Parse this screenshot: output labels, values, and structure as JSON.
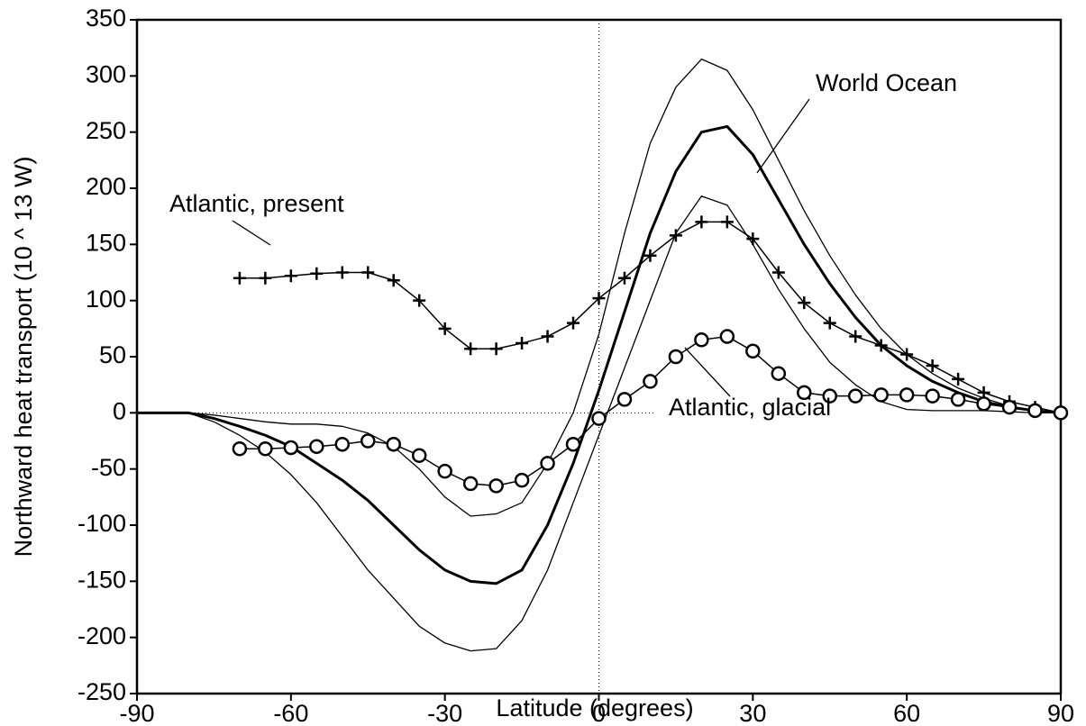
{
  "chart_data": {
    "type": "line",
    "xlabel": "Latitude (degrees)",
    "ylabel": "Northward heat transport (10 ^ 13 W)",
    "annotations": [
      "World Ocean",
      "Atlantic, present",
      "Atlantic, glacial"
    ],
    "x": [
      -90,
      -85,
      -80,
      -75,
      -70,
      -65,
      -60,
      -55,
      -50,
      -45,
      -40,
      -35,
      -30,
      -25,
      -20,
      -15,
      -10,
      -5,
      0,
      5,
      10,
      15,
      20,
      25,
      30,
      35,
      40,
      45,
      50,
      55,
      60,
      65,
      70,
      75,
      80,
      85,
      90
    ],
    "series": [
      {
        "name": "World Ocean",
        "color": "#000000",
        "line_width": 3,
        "marker": "none",
        "values": [
          0,
          0,
          0,
          -5,
          -12,
          -20,
          -30,
          -45,
          -60,
          -78,
          -100,
          -122,
          -140,
          -150,
          -152,
          -140,
          -100,
          -45,
          20,
          90,
          160,
          215,
          250,
          255,
          230,
          190,
          150,
          115,
          85,
          60,
          42,
          28,
          18,
          10,
          5,
          2,
          0
        ]
      },
      {
        "color": "#000000",
        "line_width": 1.3,
        "marker": "none",
        "values": [
          0,
          0,
          0,
          -2,
          -5,
          -8,
          -10,
          -10,
          -12,
          -18,
          -30,
          -50,
          -75,
          -92,
          -90,
          -80,
          -45,
          0,
          70,
          160,
          240,
          290,
          315,
          305,
          270,
          225,
          180,
          140,
          105,
          75,
          52,
          35,
          22,
          13,
          6,
          2,
          0
        ]
      },
      {
        "color": "#000000",
        "line_width": 1.3,
        "marker": "none",
        "values": [
          0,
          0,
          0,
          -8,
          -20,
          -35,
          -55,
          -80,
          -110,
          -140,
          -165,
          -190,
          -205,
          -212,
          -210,
          -185,
          -140,
          -80,
          -20,
          40,
          100,
          160,
          193,
          185,
          150,
          110,
          75,
          45,
          25,
          10,
          3,
          2,
          2,
          2,
          1,
          0,
          0
        ]
      },
      {
        "name": "Atlantic, present",
        "color": "#000000",
        "line_width": 1.5,
        "marker": "plus",
        "values": [
          null,
          null,
          null,
          null,
          120,
          120,
          122,
          124,
          125,
          125,
          118,
          100,
          75,
          57,
          57,
          62,
          68,
          80,
          102,
          120,
          140,
          158,
          170,
          170,
          155,
          125,
          98,
          80,
          68,
          60,
          52,
          42,
          30,
          18,
          10,
          5,
          0
        ]
      },
      {
        "name": "Atlantic, glacial",
        "color": "#000000",
        "line_width": 1.5,
        "marker": "circle",
        "values": [
          null,
          null,
          null,
          null,
          -32,
          -32,
          -31,
          -30,
          -28,
          -25,
          -28,
          -38,
          -52,
          -63,
          -65,
          -60,
          -45,
          -28,
          -5,
          12,
          28,
          50,
          65,
          68,
          55,
          35,
          18,
          15,
          15,
          16,
          16,
          15,
          12,
          8,
          5,
          2,
          0
        ]
      }
    ],
    "xlim": [
      -90,
      90
    ],
    "xticks": [
      -90,
      -60,
      -30,
      0,
      30,
      60,
      90
    ],
    "ylim": [
      -250,
      350
    ],
    "yticks": [
      -250,
      -200,
      -150,
      -100,
      -50,
      0,
      50,
      100,
      150,
      200,
      250,
      300,
      350
    ],
    "zero_lines": true
  }
}
